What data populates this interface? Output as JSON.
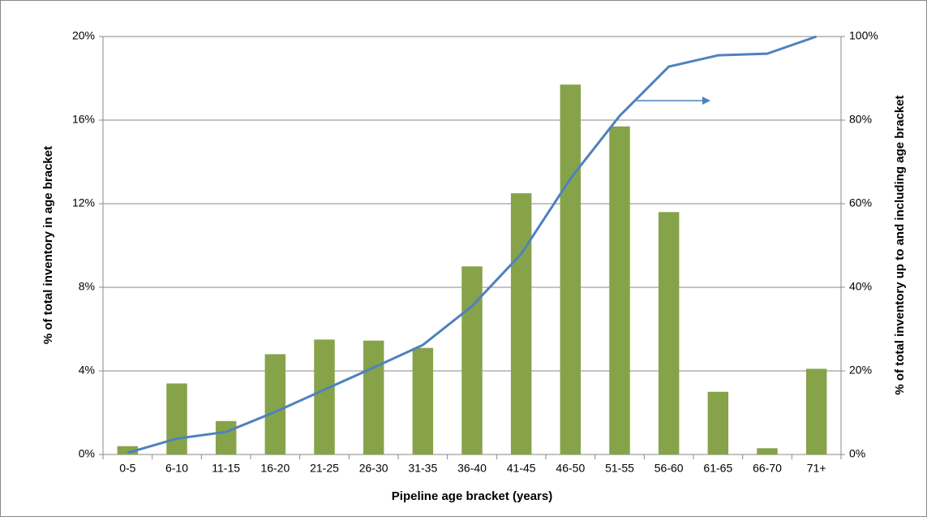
{
  "chart_data": {
    "type": "bar-line",
    "x_label": "Pipeline age bracket (years)",
    "y_label": "% of total inventory in age bracket",
    "y2_label": "% of total inventory up to and including age bracket",
    "categories": [
      "0-5",
      "6-10",
      "11-15",
      "16-20",
      "21-25",
      "26-30",
      "31-35",
      "36-40",
      "41-45",
      "46-50",
      "51-55",
      "56-60",
      "61-65",
      "66-70",
      "71+"
    ],
    "series": [
      {
        "type": "bar",
        "color": "#86a34a",
        "values": [
          0.4,
          3.4,
          1.6,
          4.8,
          5.5,
          5.45,
          5.1,
          9.0,
          12.5,
          17.7,
          15.7,
          11.6,
          3.0,
          0.3,
          4.1
        ]
      },
      {
        "type": "line",
        "color": "#4f81bd",
        "axis": "y2",
        "values": [
          0.4,
          3.8,
          5.4,
          10.2,
          15.5,
          20.8,
          26.2,
          35.5,
          48.0,
          66.0,
          81.0,
          92.8,
          95.5,
          95.9,
          100
        ]
      }
    ],
    "ylim": [
      0,
      20
    ],
    "yticks": [
      {
        "value": 0,
        "label": "0%"
      },
      {
        "value": 4,
        "label": "4%"
      },
      {
        "value": 8,
        "label": "8%"
      },
      {
        "value": 12,
        "label": "12%"
      },
      {
        "value": 16,
        "label": "16%"
      },
      {
        "value": 20,
        "label": "20%"
      }
    ],
    "y2lim": [
      0,
      100
    ],
    "y2ticks": [
      {
        "value": 0,
        "label": "0%"
      },
      {
        "value": 20,
        "label": "20%"
      },
      {
        "value": 40,
        "label": "40%"
      },
      {
        "value": 60,
        "label": "60%"
      },
      {
        "value": 80,
        "label": "80%"
      },
      {
        "value": 100,
        "label": "100%"
      }
    ],
    "grid": true
  }
}
